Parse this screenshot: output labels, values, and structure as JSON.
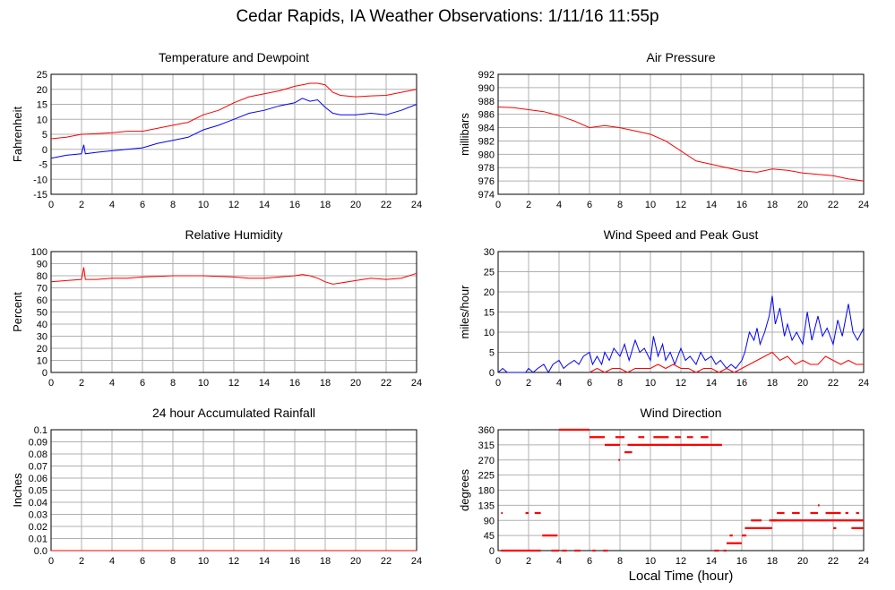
{
  "page_title": "Cedar Rapids, IA Weather Observations: 1/11/16 11:55p",
  "xaxis_label": "Local Time (hour)",
  "colors": {
    "red": "#ff0000",
    "blue": "#0000ff",
    "grid": "#b0b0b0",
    "frame": "#000000"
  },
  "chart_data": [
    {
      "id": "temp",
      "type": "line",
      "title": "Temperature and Dewpoint",
      "ylabel": "Fahrenheit",
      "xlim": [
        0,
        24
      ],
      "ylim": [
        -15,
        25
      ],
      "x_ticks": [
        0,
        2,
        4,
        6,
        8,
        10,
        12,
        14,
        16,
        18,
        20,
        22,
        24
      ],
      "y_ticks": [
        -15,
        -10,
        -5,
        0,
        5,
        10,
        15,
        20,
        25
      ],
      "grid": true,
      "series": [
        {
          "color": "#ff0000",
          "x": [
            0,
            1,
            2,
            3,
            4,
            5,
            6,
            7,
            8,
            9,
            10,
            11,
            12,
            13,
            14,
            15,
            16,
            16.5,
            17,
            17.5,
            18,
            18.5,
            19,
            20,
            21,
            22,
            23,
            24
          ],
          "y": [
            3.5,
            4,
            5,
            5.2,
            5.5,
            6,
            6,
            7,
            8,
            9,
            11.5,
            13,
            15.5,
            17.5,
            18.5,
            19.5,
            21,
            21.5,
            22,
            22,
            21.5,
            19,
            18,
            17.5,
            17.8,
            18,
            19,
            20
          ]
        },
        {
          "color": "#0000ff",
          "x": [
            0,
            1,
            2,
            2.15,
            2.25,
            3,
            4,
            5,
            6,
            7,
            8,
            9,
            10,
            11,
            12,
            13,
            14,
            15,
            16,
            16.5,
            17,
            17.5,
            18,
            18.5,
            19,
            20,
            21,
            22,
            23,
            24
          ],
          "y": [
            -3,
            -2,
            -1.5,
            1.5,
            -1.5,
            -1,
            -0.5,
            0,
            0.5,
            2,
            3,
            4,
            6.5,
            8,
            10,
            12,
            13,
            14.5,
            15.5,
            17,
            16,
            16.5,
            14,
            12,
            11.5,
            11.5,
            12,
            11.5,
            13,
            15
          ]
        }
      ]
    },
    {
      "id": "pressure",
      "type": "line",
      "title": "Air Pressure",
      "ylabel": "millibars",
      "xlim": [
        0,
        24
      ],
      "ylim": [
        974,
        992
      ],
      "x_ticks": [
        0,
        2,
        4,
        6,
        8,
        10,
        12,
        14,
        16,
        18,
        20,
        22,
        24
      ],
      "y_ticks": [
        974,
        976,
        978,
        980,
        982,
        984,
        986,
        988,
        990,
        992
      ],
      "grid": true,
      "series": [
        {
          "color": "#ff0000",
          "x": [
            0,
            1,
            2,
            3,
            4,
            5,
            6,
            7,
            8,
            9,
            10,
            11,
            12,
            13,
            14,
            15,
            16,
            17,
            18,
            19,
            20,
            21,
            22,
            23,
            24
          ],
          "y": [
            987.1,
            987,
            986.7,
            986.4,
            985.8,
            985,
            984,
            984.3,
            984,
            983.5,
            983,
            982,
            980.5,
            979,
            978.5,
            978,
            977.5,
            977.3,
            977.8,
            977.6,
            977.2,
            977,
            976.8,
            976.3,
            976
          ]
        }
      ]
    },
    {
      "id": "humidity",
      "type": "line",
      "title": "Relative Humidity",
      "ylabel": "Percent",
      "xlim": [
        0,
        24
      ],
      "ylim": [
        0,
        100
      ],
      "x_ticks": [
        0,
        2,
        4,
        6,
        8,
        10,
        12,
        14,
        16,
        18,
        20,
        22,
        24
      ],
      "y_ticks": [
        0,
        10,
        20,
        30,
        40,
        50,
        60,
        70,
        80,
        90,
        100
      ],
      "grid": true,
      "series": [
        {
          "color": "#ff0000",
          "x": [
            0,
            1,
            2,
            2.15,
            2.25,
            3,
            4,
            5,
            6,
            7,
            8,
            9,
            10,
            11,
            12,
            13,
            14,
            15,
            16,
            16.5,
            17,
            17.5,
            18,
            18.5,
            19,
            20,
            21,
            22,
            23,
            24
          ],
          "y": [
            75,
            76,
            77,
            87,
            77,
            77,
            78,
            78,
            79,
            79.5,
            80,
            80,
            80,
            79.5,
            79,
            78,
            78,
            79,
            80,
            81,
            80,
            78,
            75,
            73,
            74,
            76,
            78,
            77,
            78,
            82
          ]
        }
      ]
    },
    {
      "id": "wind",
      "type": "line",
      "title": "Wind Speed and Peak Gust",
      "ylabel": "miles/hour",
      "xlim": [
        0,
        24
      ],
      "ylim": [
        0,
        30
      ],
      "x_ticks": [
        0,
        2,
        4,
        6,
        8,
        10,
        12,
        14,
        16,
        18,
        20,
        22,
        24
      ],
      "y_ticks": [
        0,
        5,
        10,
        15,
        20,
        25,
        30
      ],
      "grid": true,
      "series": [
        {
          "color": "#0000ff",
          "x": [
            0,
            0.3,
            0.6,
            1,
            1.5,
            1.8,
            2,
            2.3,
            2.6,
            3,
            3.3,
            3.6,
            4,
            4.3,
            4.6,
            5,
            5.3,
            5.6,
            6,
            6.2,
            6.5,
            6.8,
            7,
            7.3,
            7.6,
            8,
            8.3,
            8.6,
            9,
            9.3,
            9.6,
            10,
            10.2,
            10.5,
            10.8,
            11,
            11.3,
            11.6,
            12,
            12.3,
            12.6,
            13,
            13.3,
            13.6,
            14,
            14.3,
            14.6,
            15,
            15.3,
            15.6,
            16,
            16.2,
            16.5,
            16.8,
            17,
            17.2,
            17.5,
            17.8,
            18,
            18.2,
            18.5,
            18.8,
            19,
            19.3,
            19.6,
            20,
            20.3,
            20.6,
            21,
            21.3,
            21.6,
            22,
            22.3,
            22.6,
            23,
            23.3,
            23.6,
            24
          ],
          "y": [
            0,
            1,
            0,
            0,
            0,
            0,
            1,
            0,
            1,
            2,
            0,
            2,
            3,
            1,
            2,
            3,
            2,
            4,
            5,
            2,
            4,
            2,
            5,
            3,
            6,
            4,
            7,
            3,
            8,
            5,
            6,
            3,
            9,
            4,
            7,
            3,
            5,
            2,
            6,
            3,
            4,
            2,
            5,
            3,
            4,
            2,
            3,
            1,
            2,
            1,
            3,
            5,
            10,
            8,
            11,
            7,
            10,
            14,
            19,
            12,
            16,
            9,
            12,
            8,
            10,
            7,
            15,
            8,
            14,
            9,
            11,
            7,
            13,
            9,
            17,
            10,
            8,
            11
          ]
        },
        {
          "color": "#ff0000",
          "x": [
            6,
            6.5,
            7,
            7.5,
            8,
            8.5,
            9,
            9.5,
            10,
            10.5,
            11,
            11.5,
            12,
            12.5,
            13,
            13.5,
            14,
            14.5,
            15,
            15.5,
            16,
            16.5,
            17,
            17.5,
            18,
            18.5,
            19,
            19.5,
            20,
            20.5,
            21,
            21.5,
            22,
            22.5,
            23,
            23.5,
            24
          ],
          "y": [
            0,
            1,
            0,
            1,
            1,
            0,
            1,
            1,
            1,
            2,
            1,
            2,
            1,
            1,
            0,
            1,
            1,
            0,
            1,
            0,
            1,
            2,
            3,
            4,
            5,
            3,
            4,
            2,
            3,
            2,
            2,
            4,
            3,
            2,
            3,
            2,
            2
          ]
        }
      ]
    },
    {
      "id": "rain",
      "type": "line",
      "title": "24 hour Accumulated Rainfall",
      "ylabel": "Inches",
      "xlim": [
        0,
        24
      ],
      "ylim": [
        0,
        0.1
      ],
      "x_ticks": [
        0,
        2,
        4,
        6,
        8,
        10,
        12,
        14,
        16,
        18,
        20,
        22,
        24
      ],
      "y_ticks": [
        0.0,
        0.01,
        0.02,
        0.03,
        0.04,
        0.05,
        0.06,
        0.07,
        0.08,
        0.09,
        0.1
      ],
      "y_tick_labels": [
        "0.0",
        "0.01",
        "0.02",
        "0.03",
        "0.04",
        "0.05",
        "0.06",
        "0.07",
        "0.08",
        "0.09",
        "0.1"
      ],
      "grid": true,
      "series": [
        {
          "color": "#ff0000",
          "x": [
            0,
            24
          ],
          "y": [
            0,
            0
          ]
        }
      ]
    },
    {
      "id": "winddir",
      "type": "scatter",
      "title": "Wind Direction",
      "ylabel": "degrees",
      "xlim": [
        0,
        24
      ],
      "ylim": [
        0,
        360
      ],
      "x_ticks": [
        0,
        2,
        4,
        6,
        8,
        10,
        12,
        14,
        16,
        18,
        20,
        22,
        24
      ],
      "y_ticks": [
        0,
        45,
        90,
        135,
        180,
        225,
        270,
        315,
        360
      ],
      "grid": true,
      "series": [
        {
          "color": "#ff0000",
          "segments": [
            [
              0.2,
              0,
              2.8,
              0
            ],
            [
              0.2,
              112,
              0.3,
              112
            ],
            [
              1.8,
              112,
              2.0,
              112
            ],
            [
              2.4,
              112,
              2.8,
              112
            ],
            [
              2.9,
              45,
              3.9,
              45
            ],
            [
              3.5,
              0,
              4.0,
              0
            ],
            [
              4.0,
              360,
              6.0,
              360
            ],
            [
              4.2,
              0,
              4.5,
              0
            ],
            [
              5.0,
              0,
              5.4,
              0
            ],
            [
              6.2,
              0,
              6.4,
              0
            ],
            [
              6.9,
              0,
              7.2,
              0
            ],
            [
              6.0,
              338,
              7.0,
              338
            ],
            [
              7.0,
              315,
              8.0,
              315
            ],
            [
              7.7,
              338,
              8.3,
              338
            ],
            [
              7.9,
              270,
              8.0,
              270
            ],
            [
              8.3,
              293,
              8.8,
              293
            ],
            [
              8.5,
              315,
              10.0,
              315
            ],
            [
              9.2,
              338,
              9.6,
              338
            ],
            [
              10.0,
              315,
              11.5,
              315
            ],
            [
              10.2,
              338,
              11.2,
              338
            ],
            [
              11.5,
              315,
              13.0,
              315
            ],
            [
              11.6,
              338,
              12.0,
              338
            ],
            [
              12.4,
              338,
              12.8,
              338
            ],
            [
              13.0,
              315,
              14.7,
              315
            ],
            [
              13.3,
              338,
              13.8,
              338
            ],
            [
              14.2,
              0,
              14.5,
              0
            ],
            [
              14.8,
              0,
              15.0,
              0
            ],
            [
              15.0,
              22,
              16.0,
              22
            ],
            [
              15.2,
              45,
              15.4,
              45
            ],
            [
              16.0,
              45,
              16.3,
              45
            ],
            [
              16.2,
              67,
              17.5,
              67
            ],
            [
              16.6,
              90,
              17.3,
              90
            ],
            [
              17.5,
              67,
              18.0,
              67
            ],
            [
              17.8,
              90,
              18.3,
              90
            ],
            [
              18.0,
              90,
              24.0,
              90
            ],
            [
              18.3,
              112,
              18.8,
              112
            ],
            [
              19.3,
              112,
              19.8,
              112
            ],
            [
              20.5,
              112,
              21.0,
              112
            ],
            [
              21.0,
              135,
              21.1,
              135
            ],
            [
              21.5,
              112,
              22.5,
              112
            ],
            [
              22.0,
              67,
              22.2,
              67
            ],
            [
              22.8,
              112,
              23.0,
              112
            ],
            [
              23.2,
              67,
              23.5,
              67
            ],
            [
              23.5,
              112,
              23.7,
              112
            ],
            [
              23.5,
              67,
              24.0,
              67
            ]
          ]
        }
      ]
    }
  ]
}
